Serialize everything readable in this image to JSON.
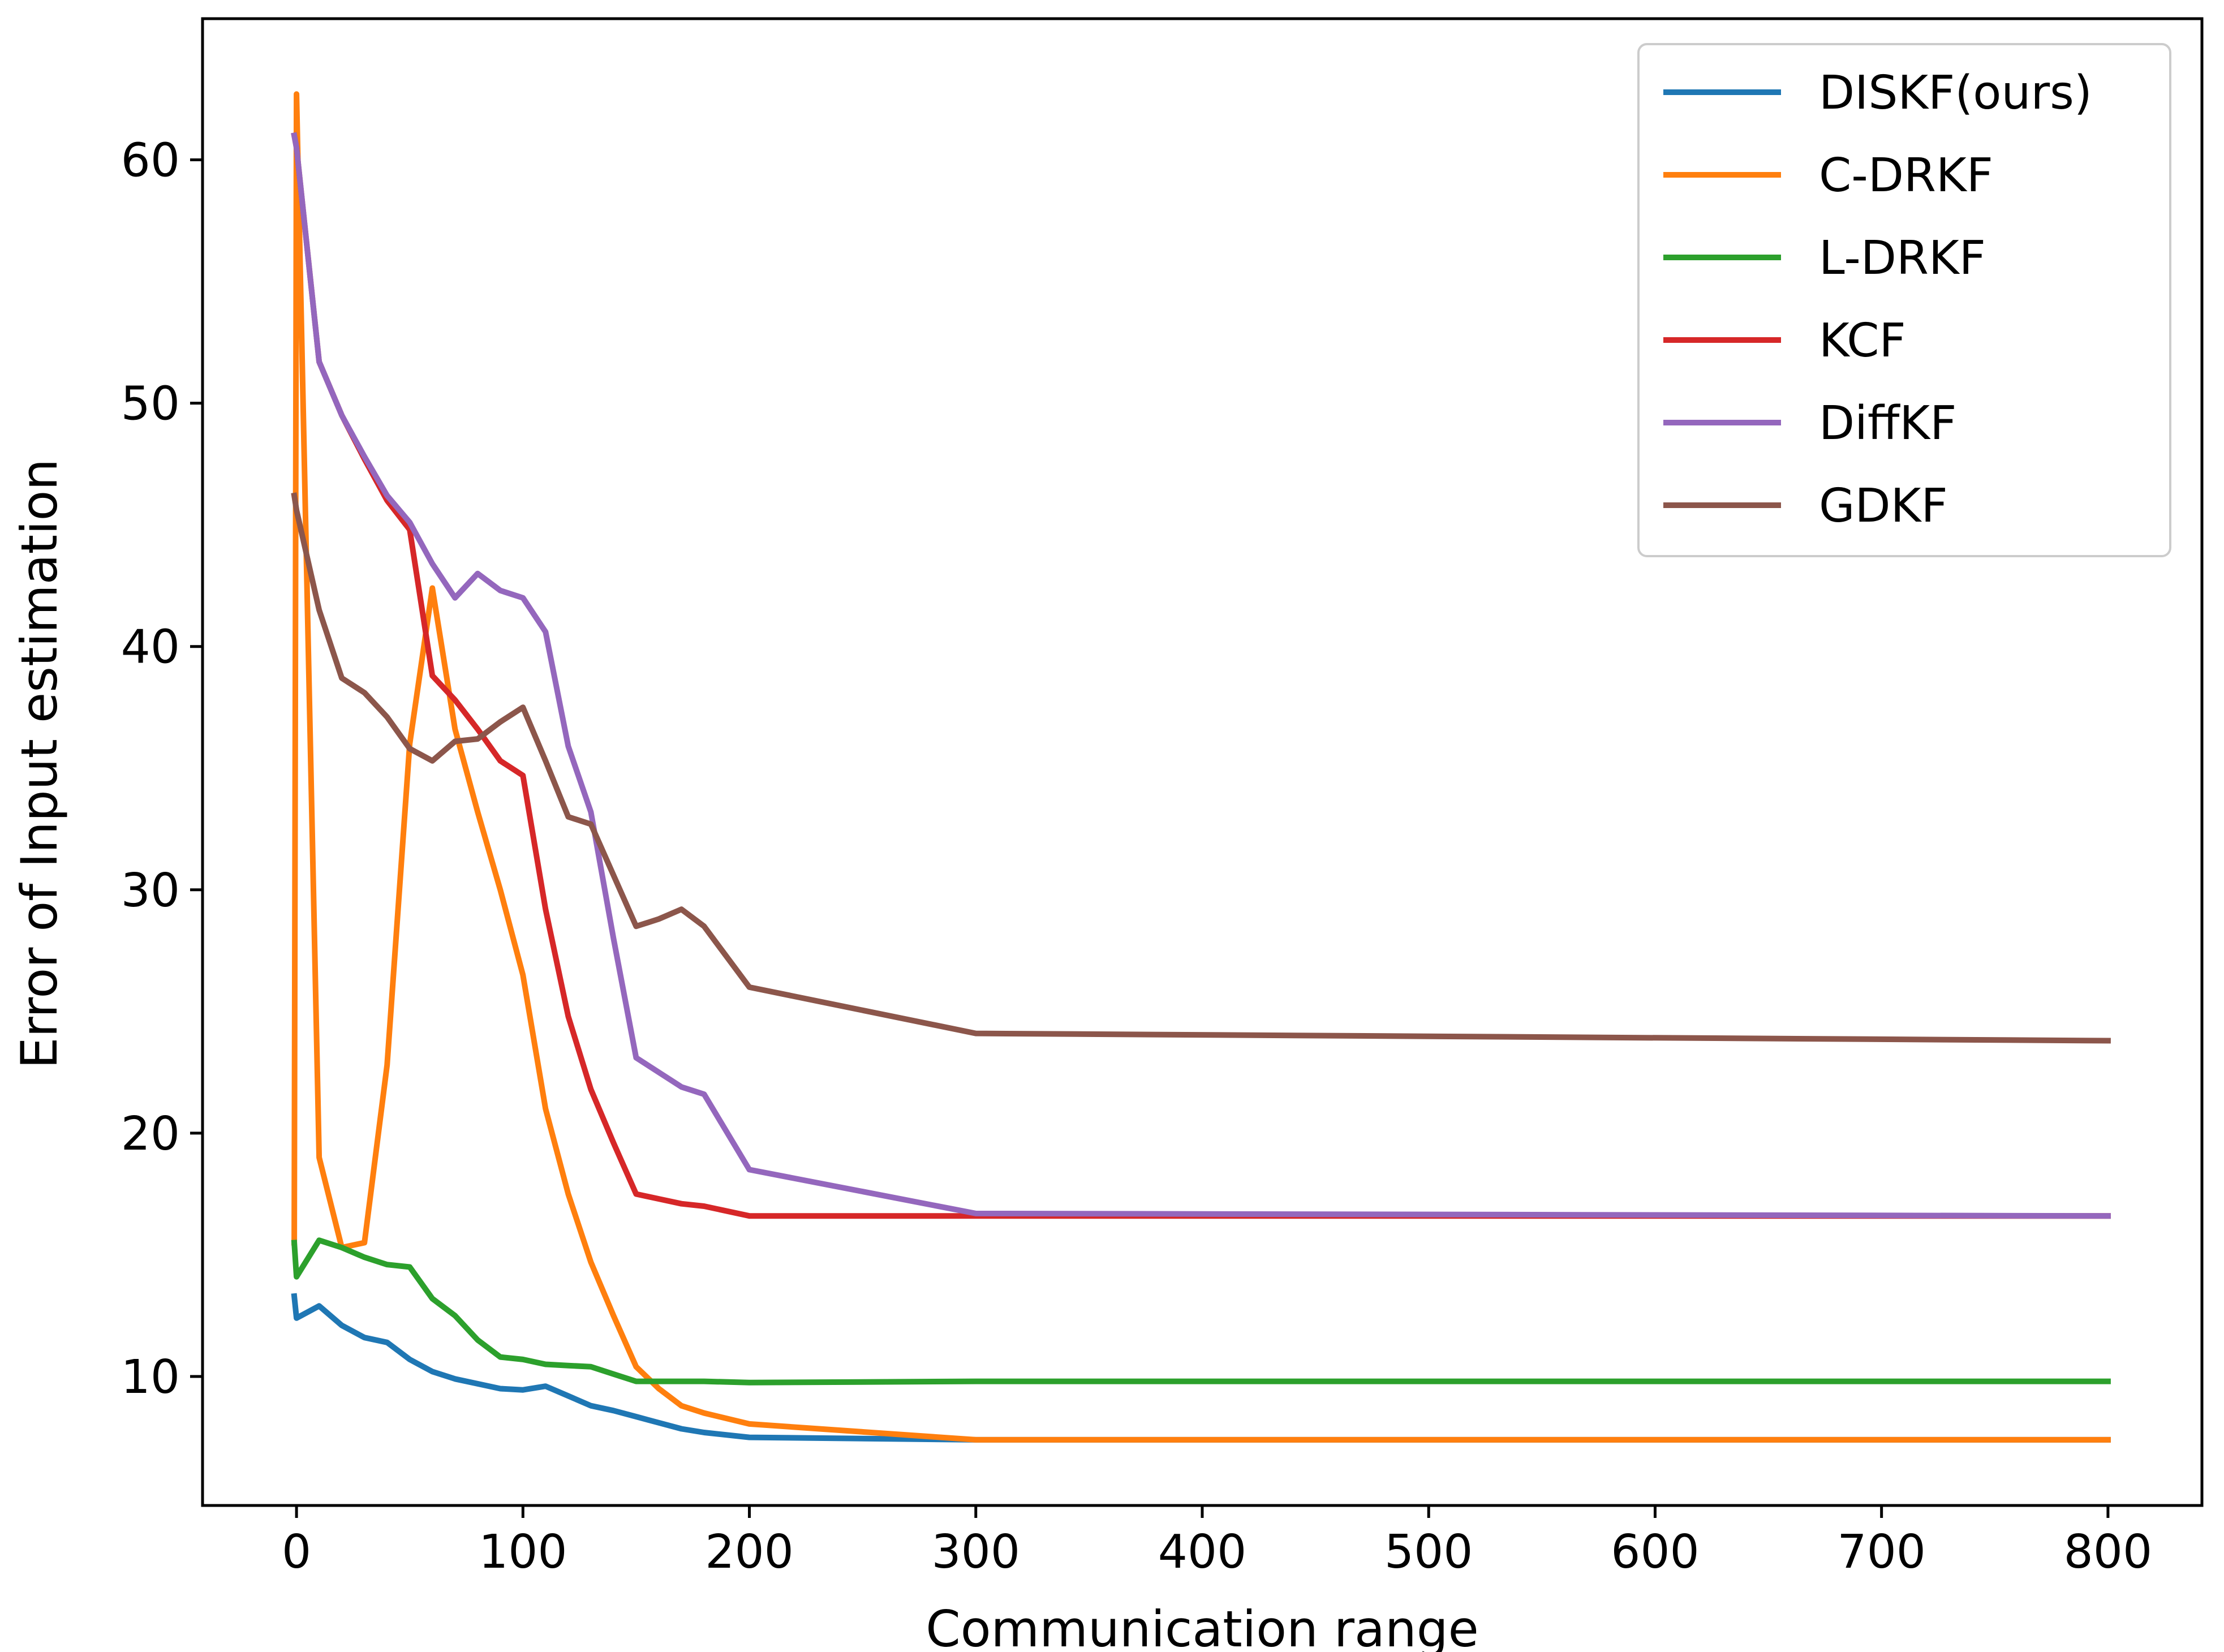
{
  "chart_data": {
    "type": "line",
    "title": "",
    "xlabel": "Communication range",
    "ylabel": "Error of Input estimation",
    "xlim": [
      -41.5,
      841.5
    ],
    "ylim": [
      4.7,
      65.8
    ],
    "xticks": [
      0,
      100,
      200,
      300,
      400,
      500,
      600,
      700,
      800
    ],
    "yticks": [
      10,
      20,
      30,
      40,
      50,
      60
    ],
    "grid": false,
    "legend_position": "top-right",
    "series": [
      {
        "name": "DISKF(ours)",
        "color": "#1f77b4",
        "x": [
          -1,
          0,
          10,
          20,
          30,
          40,
          50,
          60,
          70,
          80,
          90,
          100,
          110,
          120,
          130,
          140,
          150,
          160,
          170,
          180,
          200,
          300,
          800
        ],
        "y": [
          13.3,
          12.4,
          12.9,
          12.1,
          11.6,
          11.4,
          10.7,
          10.2,
          9.9,
          9.7,
          9.5,
          9.45,
          9.6,
          9.2,
          8.8,
          8.6,
          8.35,
          8.1,
          7.85,
          7.7,
          7.5,
          7.4,
          7.4
        ]
      },
      {
        "name": "C-DRKF",
        "color": "#ff7f0e",
        "x": [
          -1,
          0,
          10,
          20,
          30,
          40,
          50,
          60,
          70,
          80,
          90,
          100,
          110,
          120,
          130,
          140,
          150,
          160,
          170,
          180,
          200,
          300,
          800
        ],
        "y": [
          15.5,
          62.7,
          19.0,
          15.3,
          15.5,
          22.8,
          36.0,
          42.4,
          36.6,
          33.2,
          30.0,
          26.5,
          21.0,
          17.5,
          14.7,
          12.5,
          10.4,
          9.5,
          8.8,
          8.5,
          8.05,
          7.4,
          7.4
        ]
      },
      {
        "name": "L-DRKF",
        "color": "#2ca02c",
        "x": [
          -1,
          0,
          10,
          20,
          30,
          40,
          50,
          60,
          70,
          80,
          90,
          100,
          110,
          120,
          130,
          140,
          150,
          160,
          170,
          180,
          200,
          300,
          800
        ],
        "y": [
          15.5,
          14.1,
          15.6,
          15.3,
          14.9,
          14.6,
          14.5,
          13.2,
          12.5,
          11.5,
          10.8,
          10.7,
          10.5,
          10.45,
          10.4,
          10.1,
          9.8,
          9.8,
          9.8,
          9.8,
          9.75,
          9.8,
          9.8
        ]
      },
      {
        "name": "KCF",
        "color": "#d62728",
        "x": [
          -1,
          0,
          10,
          20,
          30,
          40,
          50,
          60,
          70,
          80,
          90,
          100,
          110,
          120,
          130,
          140,
          150,
          160,
          170,
          180,
          200,
          300,
          800
        ],
        "y": [
          61.0,
          60.5,
          51.7,
          49.5,
          47.7,
          46.0,
          44.8,
          38.8,
          37.8,
          36.6,
          35.3,
          34.7,
          29.2,
          24.8,
          21.8,
          19.6,
          17.5,
          17.3,
          17.1,
          17.0,
          16.6,
          16.6,
          16.6
        ]
      },
      {
        "name": "DiffKF",
        "color": "#9467bd",
        "x": [
          -1,
          0,
          10,
          20,
          30,
          40,
          50,
          60,
          70,
          80,
          90,
          100,
          110,
          120,
          130,
          140,
          150,
          160,
          170,
          180,
          200,
          300,
          800
        ],
        "y": [
          61.0,
          60.5,
          51.7,
          49.5,
          47.8,
          46.2,
          45.1,
          43.4,
          42.0,
          43.0,
          42.3,
          42.0,
          40.6,
          35.9,
          33.2,
          28.0,
          23.1,
          22.5,
          21.9,
          21.6,
          18.5,
          16.7,
          16.6
        ]
      },
      {
        "name": "GDKF",
        "color": "#8c564b",
        "x": [
          -1,
          0,
          10,
          20,
          30,
          40,
          50,
          60,
          70,
          80,
          90,
          100,
          110,
          120,
          130,
          140,
          150,
          160,
          170,
          180,
          200,
          300,
          800
        ],
        "y": [
          46.2,
          45.6,
          41.5,
          38.7,
          38.1,
          37.1,
          35.8,
          35.3,
          36.1,
          36.2,
          36.9,
          37.5,
          35.3,
          33.0,
          32.7,
          30.6,
          28.5,
          28.8,
          29.2,
          28.5,
          26.0,
          24.1,
          23.8
        ]
      }
    ]
  }
}
